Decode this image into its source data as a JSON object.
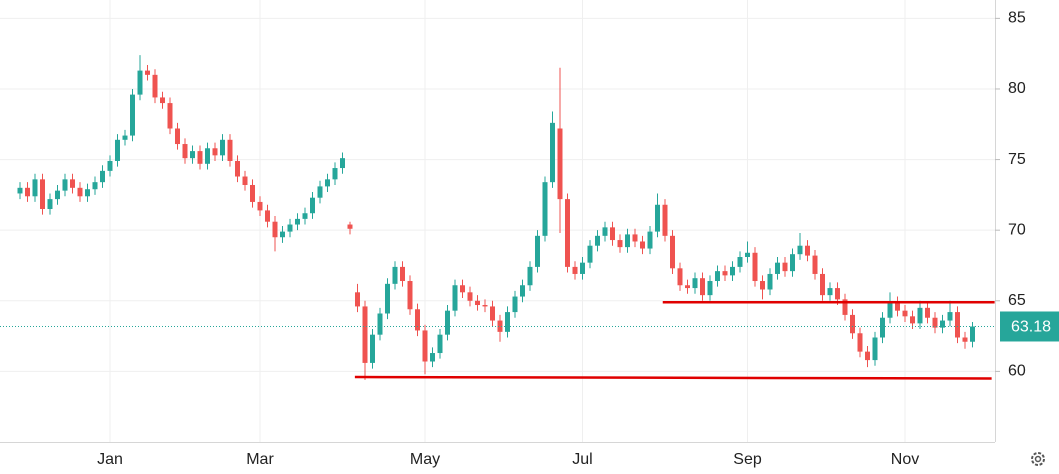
{
  "chart_data": {
    "type": "candlestick",
    "categories": [
      null,
      null,
      null,
      null,
      null,
      null,
      null,
      null,
      null,
      null,
      null,
      null,
      "Jan",
      null,
      null,
      null,
      null,
      null,
      null,
      null,
      null,
      null,
      null,
      null,
      null,
      null,
      null,
      null,
      null,
      null,
      null,
      null,
      "Mar",
      null,
      null,
      null,
      null,
      null,
      null,
      null,
      null,
      null,
      null,
      null,
      null,
      null,
      null,
      null,
      null,
      null,
      null,
      null,
      null,
      null,
      "May",
      null,
      null,
      null,
      null,
      null,
      null,
      null,
      null,
      null,
      null,
      null,
      null,
      null,
      null,
      null,
      null,
      null,
      null,
      null,
      null,
      "Jul",
      null,
      null,
      null,
      null,
      null,
      null,
      null,
      null,
      null,
      null,
      null,
      null,
      null,
      null,
      null,
      null,
      null,
      null,
      null,
      null,
      null,
      "Sep",
      null,
      null,
      null,
      null,
      null,
      null,
      null,
      null,
      null,
      null,
      null,
      null,
      null,
      null,
      null,
      null,
      null,
      null,
      null,
      null,
      "Nov",
      null,
      null,
      null,
      null,
      null,
      null,
      null,
      null,
      null
    ],
    "series": [
      {
        "color_up": "#26a69a",
        "color_down": "#ef5350",
        "values": [
          [
            72.6,
            73.4,
            72.2,
            73.0
          ],
          [
            73.0,
            73.4,
            72.0,
            72.4
          ],
          [
            72.4,
            74.0,
            72.0,
            73.6
          ],
          [
            73.6,
            74.0,
            71.1,
            71.5
          ],
          [
            71.5,
            72.6,
            71.1,
            72.2
          ],
          [
            72.2,
            73.2,
            71.8,
            72.8
          ],
          [
            72.8,
            74.0,
            72.4,
            73.6
          ],
          [
            73.6,
            74.0,
            72.6,
            73.0
          ],
          [
            73.0,
            73.4,
            72.0,
            72.4
          ],
          [
            72.4,
            73.3,
            72.0,
            72.9
          ],
          [
            72.9,
            73.8,
            72.5,
            73.4
          ],
          [
            73.4,
            74.6,
            73.0,
            74.2
          ],
          [
            74.2,
            75.3,
            73.8,
            74.9
          ],
          [
            74.9,
            76.8,
            74.5,
            76.4
          ],
          [
            76.4,
            77.1,
            76.0,
            76.7
          ],
          [
            76.7,
            80.0,
            76.3,
            79.6
          ],
          [
            79.6,
            82.4,
            79.2,
            81.3
          ],
          [
            81.3,
            81.7,
            80.6,
            81.0
          ],
          [
            81.0,
            81.4,
            79.0,
            79.4
          ],
          [
            79.4,
            79.8,
            78.6,
            79.0
          ],
          [
            79.0,
            79.4,
            76.8,
            77.2
          ],
          [
            77.2,
            77.6,
            75.7,
            76.1
          ],
          [
            76.1,
            76.5,
            74.7,
            75.1
          ],
          [
            75.1,
            76.0,
            74.7,
            75.6
          ],
          [
            75.6,
            76.0,
            74.3,
            74.7
          ],
          [
            74.7,
            76.2,
            74.3,
            75.8
          ],
          [
            75.8,
            76.2,
            74.9,
            75.3
          ],
          [
            75.3,
            76.8,
            74.9,
            76.4
          ],
          [
            76.4,
            76.8,
            74.5,
            74.9
          ],
          [
            74.9,
            75.3,
            73.4,
            73.8
          ],
          [
            73.8,
            74.2,
            72.8,
            73.2
          ],
          [
            73.2,
            73.6,
            71.6,
            72.0
          ],
          [
            72.0,
            72.4,
            71.0,
            71.4
          ],
          [
            71.4,
            71.8,
            70.2,
            70.6
          ],
          [
            70.6,
            71.0,
            68.5,
            69.5
          ],
          [
            69.5,
            70.3,
            69.1,
            69.9
          ],
          [
            69.9,
            70.8,
            69.5,
            70.4
          ],
          [
            70.4,
            71.2,
            70.0,
            70.8
          ],
          [
            70.8,
            71.6,
            70.4,
            71.2
          ],
          [
            71.2,
            72.7,
            70.8,
            72.3
          ],
          [
            72.3,
            73.5,
            71.9,
            73.1
          ],
          [
            73.1,
            74.0,
            72.7,
            73.6
          ],
          [
            73.6,
            74.8,
            73.2,
            74.4
          ],
          [
            74.4,
            75.5,
            74.0,
            75.1
          ],
          [
            70.4,
            70.6,
            69.7,
            70.1
          ],
          [
            65.6,
            66.2,
            64.2,
            64.6
          ],
          [
            64.6,
            65.0,
            59.4,
            60.6
          ],
          [
            60.6,
            63.0,
            60.2,
            62.6
          ],
          [
            62.6,
            64.5,
            62.2,
            64.1
          ],
          [
            64.1,
            66.6,
            63.7,
            66.2
          ],
          [
            66.2,
            67.8,
            65.8,
            67.4
          ],
          [
            67.4,
            67.8,
            66.0,
            66.4
          ],
          [
            66.4,
            66.8,
            64.0,
            64.4
          ],
          [
            64.4,
            64.8,
            62.5,
            62.9
          ],
          [
            62.9,
            63.3,
            59.8,
            60.7
          ],
          [
            60.7,
            61.7,
            60.3,
            61.3
          ],
          [
            61.3,
            63.0,
            60.9,
            62.6
          ],
          [
            62.6,
            64.7,
            62.2,
            64.3
          ],
          [
            64.3,
            66.5,
            63.9,
            66.1
          ],
          [
            66.1,
            66.5,
            65.2,
            65.6
          ],
          [
            65.6,
            66.0,
            64.6,
            65.0
          ],
          [
            65.0,
            65.4,
            64.3,
            64.7
          ],
          [
            64.7,
            65.1,
            64.2,
            64.6
          ],
          [
            64.6,
            65.0,
            63.2,
            63.6
          ],
          [
            63.6,
            64.0,
            62.1,
            62.8
          ],
          [
            62.8,
            64.6,
            62.4,
            64.2
          ],
          [
            64.2,
            65.7,
            63.8,
            65.3
          ],
          [
            65.3,
            66.5,
            64.9,
            66.1
          ],
          [
            66.1,
            67.8,
            65.7,
            67.4
          ],
          [
            67.4,
            70.0,
            67.0,
            69.6
          ],
          [
            69.6,
            73.8,
            69.2,
            73.4
          ],
          [
            73.4,
            78.4,
            73.0,
            77.6
          ],
          [
            77.2,
            81.5,
            69.8,
            72.2
          ],
          [
            72.2,
            72.6,
            67.0,
            67.4
          ],
          [
            67.4,
            67.8,
            66.5,
            66.9
          ],
          [
            66.9,
            68.1,
            66.5,
            67.7
          ],
          [
            67.7,
            69.3,
            67.3,
            68.9
          ],
          [
            68.9,
            70.0,
            68.5,
            69.6
          ],
          [
            69.6,
            70.6,
            69.2,
            70.2
          ],
          [
            70.2,
            70.6,
            68.9,
            69.3
          ],
          [
            69.3,
            69.7,
            68.4,
            68.8
          ],
          [
            68.8,
            70.1,
            68.4,
            69.7
          ],
          [
            69.7,
            70.1,
            68.8,
            69.2
          ],
          [
            69.2,
            69.6,
            68.3,
            68.7
          ],
          [
            68.7,
            70.3,
            68.3,
            69.9
          ],
          [
            69.9,
            72.6,
            69.5,
            71.8
          ],
          [
            71.8,
            72.2,
            69.2,
            69.6
          ],
          [
            69.6,
            70.0,
            66.9,
            67.3
          ],
          [
            67.3,
            67.7,
            65.7,
            66.1
          ],
          [
            66.1,
            66.5,
            65.5,
            65.9
          ],
          [
            65.9,
            67.0,
            65.5,
            66.6
          ],
          [
            66.6,
            67.0,
            65.0,
            65.4
          ],
          [
            65.4,
            66.8,
            65.0,
            66.4
          ],
          [
            66.4,
            67.5,
            66.0,
            67.1
          ],
          [
            67.1,
            67.5,
            66.4,
            66.8
          ],
          [
            66.8,
            67.8,
            66.4,
            67.4
          ],
          [
            67.4,
            68.5,
            67.0,
            68.1
          ],
          [
            68.1,
            69.2,
            67.7,
            68.4
          ],
          [
            68.4,
            68.8,
            66.0,
            66.4
          ],
          [
            66.4,
            66.8,
            65.1,
            65.8
          ],
          [
            65.8,
            67.3,
            65.4,
            66.9
          ],
          [
            66.9,
            68.1,
            66.5,
            67.7
          ],
          [
            67.7,
            68.1,
            66.7,
            67.1
          ],
          [
            67.1,
            68.7,
            66.7,
            68.3
          ],
          [
            68.3,
            69.8,
            67.9,
            68.9
          ],
          [
            68.9,
            69.3,
            67.8,
            68.2
          ],
          [
            68.2,
            68.6,
            66.5,
            66.9
          ],
          [
            66.9,
            67.3,
            65.0,
            65.4
          ],
          [
            65.4,
            66.3,
            65.0,
            65.9
          ],
          [
            65.9,
            66.3,
            64.7,
            65.1
          ],
          [
            65.1,
            65.5,
            63.6,
            64.0
          ],
          [
            64.0,
            64.4,
            62.3,
            62.7
          ],
          [
            62.7,
            63.1,
            61.0,
            61.4
          ],
          [
            61.4,
            61.8,
            60.3,
            60.8
          ],
          [
            60.8,
            62.8,
            60.4,
            62.4
          ],
          [
            62.4,
            64.2,
            62.0,
            63.8
          ],
          [
            63.8,
            65.6,
            63.4,
            64.9
          ],
          [
            64.9,
            65.3,
            63.9,
            64.3
          ],
          [
            64.3,
            64.7,
            63.5,
            63.9
          ],
          [
            63.9,
            64.3,
            63.0,
            63.4
          ],
          [
            63.4,
            65.0,
            63.0,
            64.5
          ],
          [
            64.5,
            64.9,
            63.4,
            63.8
          ],
          [
            63.8,
            64.2,
            62.7,
            63.1
          ],
          [
            63.1,
            64.0,
            62.7,
            63.6
          ],
          [
            63.6,
            65.0,
            63.2,
            64.2
          ],
          [
            64.2,
            64.6,
            62.0,
            62.4
          ],
          [
            62.4,
            62.8,
            61.6,
            62.1
          ],
          [
            62.1,
            63.5,
            61.7,
            63.18
          ]
        ]
      }
    ],
    "ylim": [
      55,
      86.3
    ],
    "yticks": [
      60,
      65,
      70,
      75,
      80,
      85
    ],
    "grid": true,
    "last_price": 63.18,
    "last_price_color": "#26a69a",
    "trendlines": [
      {
        "x": [
          44.65,
          129.55
        ],
        "y": [
          59.6,
          59.5
        ],
        "color": "#e00000"
      },
      {
        "x": [
          85.7,
          129.95
        ],
        "y": [
          64.9,
          64.9
        ],
        "color": "#e00000"
      }
    ]
  }
}
